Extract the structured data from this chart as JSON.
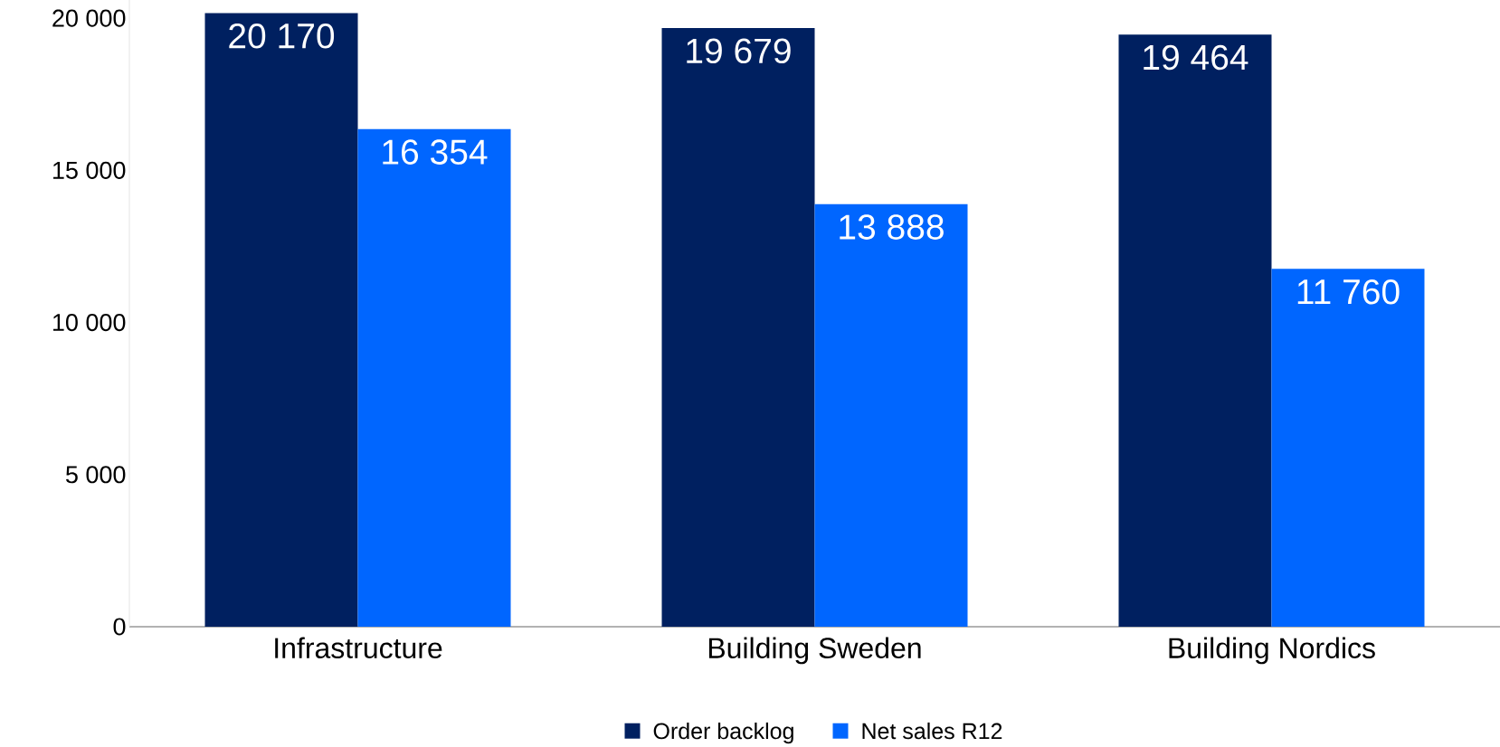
{
  "chart_data": {
    "type": "bar",
    "categories": [
      "Infrastructure",
      "Building Sweden",
      "Building Nordics"
    ],
    "series": [
      {
        "name": "Order backlog",
        "color": "#002060",
        "values": [
          20170,
          19679,
          19464
        ],
        "value_labels": [
          "20 170",
          "19 679",
          "19 464"
        ]
      },
      {
        "name": "Net sales R12",
        "color": "#0066ff",
        "values": [
          16354,
          13888,
          11760
        ],
        "value_labels": [
          "16 354",
          "13 888",
          "11 760"
        ]
      }
    ],
    "ylim": [
      0,
      20600
    ],
    "yticks": [
      {
        "value": 0,
        "label": "0"
      },
      {
        "value": 5000,
        "label": "5 000"
      },
      {
        "value": 10000,
        "label": "10 000"
      },
      {
        "value": 15000,
        "label": "15 000"
      },
      {
        "value": 20000,
        "label": "20 000"
      }
    ],
    "legend": "bottom"
  }
}
